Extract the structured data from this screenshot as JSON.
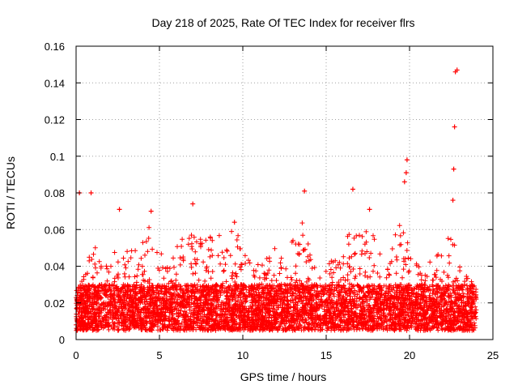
{
  "chart_data": {
    "type": "scatter",
    "title": "Day 218 of 2025, Rate Of TEC Index for receiver flrs",
    "xlabel": "GPS time / hours",
    "ylabel": "ROTI / TECUs",
    "xlim": [
      0,
      25
    ],
    "ylim": [
      0,
      0.16
    ],
    "x_ticks": [
      0,
      5,
      10,
      15,
      20,
      25
    ],
    "x_tick_labels": [
      "0",
      "5",
      "10",
      "15",
      "20",
      "25"
    ],
    "y_ticks": [
      0,
      0.02,
      0.04,
      0.06,
      0.08,
      0.1,
      0.12,
      0.14,
      0.16
    ],
    "y_tick_labels": [
      "0",
      "0.02",
      "0.04",
      "0.06",
      "0.08",
      "0.1",
      "0.12",
      "0.14",
      "0.16"
    ],
    "grid": true,
    "marker": "+",
    "color": "#ff0000",
    "series": [
      {
        "name": "ROTI",
        "x_range": [
          0,
          24
        ],
        "baseline_range": [
          0.005,
          0.03
        ],
        "notable_points": [
          {
            "x": 0.2,
            "y": 0.08
          },
          {
            "x": 0.9,
            "y": 0.08
          },
          {
            "x": 2.6,
            "y": 0.071
          },
          {
            "x": 4.5,
            "y": 0.07
          },
          {
            "x": 7.0,
            "y": 0.074
          },
          {
            "x": 9.5,
            "y": 0.064
          },
          {
            "x": 13.7,
            "y": 0.081
          },
          {
            "x": 16.6,
            "y": 0.082
          },
          {
            "x": 17.6,
            "y": 0.071
          },
          {
            "x": 19.7,
            "y": 0.086
          },
          {
            "x": 19.8,
            "y": 0.091
          },
          {
            "x": 19.85,
            "y": 0.098
          },
          {
            "x": 22.6,
            "y": 0.076
          },
          {
            "x": 22.65,
            "y": 0.093
          },
          {
            "x": 22.7,
            "y": 0.116
          },
          {
            "x": 22.75,
            "y": 0.146
          },
          {
            "x": 22.85,
            "y": 0.147
          }
        ],
        "activity_envelope": [
          {
            "x": 0.0,
            "y": 0.03
          },
          {
            "x": 0.5,
            "y": 0.035
          },
          {
            "x": 1.0,
            "y": 0.065
          },
          {
            "x": 1.5,
            "y": 0.04
          },
          {
            "x": 2.5,
            "y": 0.05
          },
          {
            "x": 3.5,
            "y": 0.05
          },
          {
            "x": 4.5,
            "y": 0.065
          },
          {
            "x": 5.5,
            "y": 0.04
          },
          {
            "x": 6.5,
            "y": 0.06
          },
          {
            "x": 7.5,
            "y": 0.055
          },
          {
            "x": 8.5,
            "y": 0.058
          },
          {
            "x": 9.5,
            "y": 0.06
          },
          {
            "x": 10.5,
            "y": 0.045
          },
          {
            "x": 11.5,
            "y": 0.05
          },
          {
            "x": 12.5,
            "y": 0.05
          },
          {
            "x": 13.5,
            "y": 0.07
          },
          {
            "x": 14.5,
            "y": 0.04
          },
          {
            "x": 15.5,
            "y": 0.045
          },
          {
            "x": 16.5,
            "y": 0.065
          },
          {
            "x": 17.5,
            "y": 0.06
          },
          {
            "x": 18.5,
            "y": 0.05
          },
          {
            "x": 19.5,
            "y": 0.065
          },
          {
            "x": 20.5,
            "y": 0.04
          },
          {
            "x": 21.5,
            "y": 0.045
          },
          {
            "x": 22.5,
            "y": 0.06
          },
          {
            "x": 23.0,
            "y": 0.04
          },
          {
            "x": 24.0,
            "y": 0.03
          }
        ]
      }
    ]
  }
}
